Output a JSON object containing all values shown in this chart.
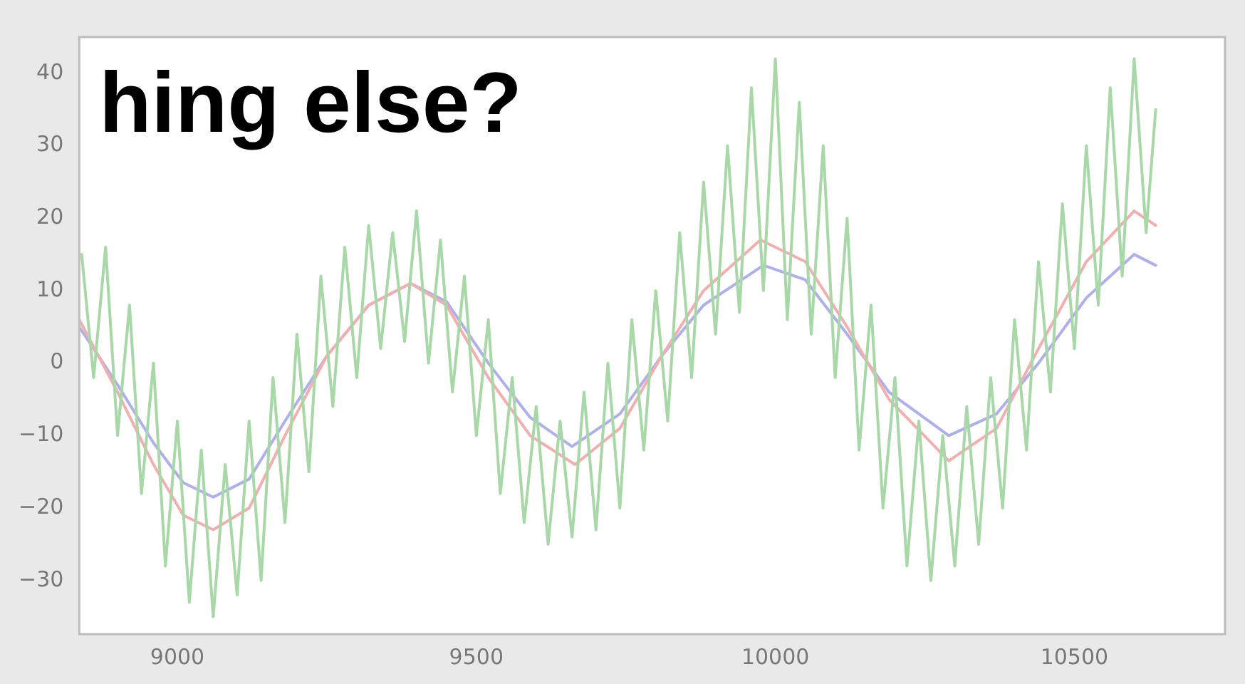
{
  "chart_data": {
    "type": "line",
    "annotations": [
      "hing else?"
    ],
    "xlim": [
      8836,
      10752
    ],
    "xticks": [
      9000,
      9500,
      10000,
      10500
    ],
    "ylim": [
      -37.4,
      45
    ],
    "yticks": [
      {
        "value": -30,
        "label": "−30"
      },
      {
        "value": -20,
        "label": "−20"
      },
      {
        "value": -10,
        "label": "−10"
      },
      0,
      10,
      20,
      30,
      40
    ],
    "grid": false,
    "legend": false,
    "marker": "none",
    "line_style": "solid",
    "series": [
      {
        "color": "#a8d8a8",
        "x": [
          8840,
          8860,
          8880,
          8900,
          8920,
          8940,
          8960,
          8980,
          9000,
          9020,
          9040,
          9060,
          9080,
          9100,
          9120,
          9140,
          9160,
          9180,
          9200,
          9220,
          9240,
          9260,
          9280,
          9300,
          9320,
          9340,
          9360,
          9380,
          9400,
          9420,
          9440,
          9460,
          9480,
          9500,
          9520,
          9540,
          9560,
          9580,
          9600,
          9620,
          9640,
          9660,
          9680,
          9700,
          9720,
          9740,
          9760,
          9780,
          9800,
          9820,
          9840,
          9860,
          9880,
          9900,
          9920,
          9940,
          9960,
          9980,
          10000,
          10020,
          10040,
          10060,
          10080,
          10100,
          10120,
          10140,
          10160,
          10180,
          10200,
          10220,
          10240,
          10260,
          10280,
          10300,
          10320,
          10340,
          10360,
          10380,
          10400,
          10420,
          10440,
          10460,
          10480,
          10500,
          10520,
          10540,
          10560,
          10580,
          10600,
          10620,
          10636
        ],
        "values": [
          15,
          -2,
          16,
          -10,
          8,
          -18,
          0,
          -28,
          -8,
          -33,
          -12,
          -35,
          -14,
          -32,
          -8,
          -30,
          -2,
          -22,
          4,
          -15,
          12,
          -6,
          16,
          -2,
          19,
          2,
          18,
          3,
          21,
          0,
          17,
          -4,
          12,
          -10,
          6,
          -18,
          -2,
          -22,
          -6,
          -25,
          -8,
          -24,
          -4,
          -23,
          0,
          -20,
          6,
          -12,
          10,
          -8,
          18,
          -2,
          25,
          4,
          30,
          7,
          38,
          10,
          42,
          6,
          36,
          4,
          30,
          -2,
          20,
          -12,
          8,
          -20,
          -2,
          -28,
          -8,
          -30,
          -10,
          -28,
          -6,
          -25,
          -2,
          -20,
          6,
          -12,
          14,
          -4,
          22,
          2,
          30,
          8,
          38,
          12,
          42,
          18,
          35
        ]
      },
      {
        "color": "#f0b0b0",
        "x": [
          8836,
          8900,
          8960,
          9010,
          9060,
          9120,
          9180,
          9250,
          9320,
          9390,
          9450,
          9520,
          9590,
          9665,
          9740,
          9810,
          9880,
          9975,
          10050,
          10120,
          10190,
          10290,
          10370,
          10440,
          10520,
          10600,
          10636
        ],
        "values": [
          6,
          -4,
          -14,
          -21,
          -23,
          -20,
          -10,
          1,
          8,
          11,
          8,
          -2,
          -10,
          -14,
          -9,
          1,
          10,
          17,
          14,
          5,
          -5,
          -13.5,
          -9,
          2,
          14,
          21,
          19
        ]
      },
      {
        "color": "#b0b0e8",
        "x": [
          8836,
          8900,
          8960,
          9010,
          9060,
          9120,
          9180,
          9250,
          9320,
          9390,
          9450,
          9520,
          9590,
          9660,
          9740,
          9810,
          9880,
          9980,
          10050,
          10120,
          10190,
          10290,
          10370,
          10440,
          10520,
          10600,
          10636
        ],
        "values": [
          5,
          -3,
          -11,
          -16.5,
          -18.5,
          -16,
          -8,
          1,
          8,
          11,
          8.5,
          0,
          -7.5,
          -11.5,
          -7,
          1,
          8,
          13.5,
          11.5,
          4,
          -4,
          -10,
          -7,
          0,
          9,
          15,
          13.5
        ]
      }
    ]
  }
}
